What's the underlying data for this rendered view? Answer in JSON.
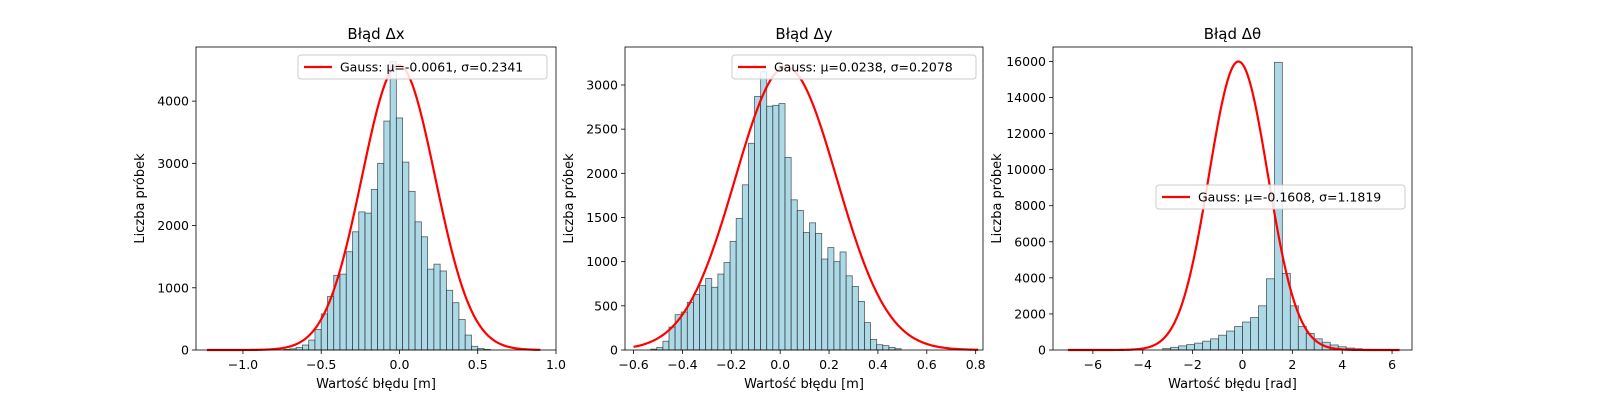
{
  "chart_data": [
    {
      "type": "bar",
      "title": "Błąd Δx",
      "xlabel": "Wartość błędu [m]",
      "ylabel": "Liczba próbek",
      "xlim": [
        -1.3,
        1.0
      ],
      "ylim": [
        0,
        4870
      ],
      "xticks": [
        -1.0,
        -0.5,
        0.0,
        0.5,
        1.0
      ],
      "xtick_labels": [
        "−1.0",
        "−0.5",
        "0.0",
        "0.5",
        "1.0"
      ],
      "yticks": [
        0,
        1000,
        2000,
        3000,
        4000
      ],
      "ytick_labels": [
        "0",
        "1000",
        "2000",
        "3000",
        "4000"
      ],
      "bins": {
        "start": -0.74,
        "width": 0.04
      },
      "values": [
        10,
        20,
        40,
        80,
        160,
        330,
        580,
        860,
        1200,
        1220,
        1580,
        1900,
        2220,
        2200,
        2580,
        3000,
        3680,
        4640,
        3730,
        3020,
        2550,
        2060,
        1820,
        1300,
        1380,
        1270,
        960,
        760,
        490,
        240,
        60,
        25,
        10
      ],
      "gauss": {
        "label": "Gauss: μ=-0.0061, σ=0.2341",
        "mu": -0.0061,
        "sigma": 0.2341,
        "peak": 4580,
        "range": [
          -1.23,
          0.9
        ]
      },
      "legend": "top-right",
      "grid": false
    },
    {
      "type": "bar",
      "title": "Błąd Δy",
      "xlabel": "Wartość błędu [m]",
      "ylabel": "Liczba próbek",
      "xlim": [
        -0.635,
        0.83
      ],
      "ylim": [
        0,
        3430
      ],
      "xticks": [
        -0.6,
        -0.4,
        -0.2,
        0.0,
        0.2,
        0.4,
        0.6,
        0.8
      ],
      "xtick_labels": [
        "−0.6",
        "−0.4",
        "−0.2",
        "0.0",
        "0.2",
        "0.4",
        "0.6",
        "0.8"
      ],
      "yticks": [
        0,
        500,
        1000,
        1500,
        2000,
        2500,
        3000
      ],
      "ytick_labels": [
        "0",
        "500",
        "1000",
        "1500",
        "2000",
        "2500",
        "3000"
      ],
      "bins": {
        "start": -0.53,
        "width": 0.025
      },
      "values": [
        10,
        30,
        100,
        260,
        400,
        430,
        540,
        630,
        730,
        810,
        710,
        860,
        990,
        1230,
        1490,
        1870,
        2340,
        2870,
        3150,
        2760,
        2770,
        2790,
        2180,
        1700,
        1580,
        1330,
        1440,
        1320,
        1030,
        1160,
        1000,
        1110,
        840,
        720,
        550,
        310,
        120,
        60,
        50,
        30,
        15
      ],
      "gauss": {
        "label": "Gauss: μ=0.0238, σ=0.2078",
        "mu": 0.0238,
        "sigma": 0.2078,
        "peak": 3200,
        "range": [
          -0.6,
          0.81
        ]
      },
      "legend": "top-right",
      "grid": false
    },
    {
      "type": "bar",
      "title": "Błąd Δθ",
      "xlabel": "Wartość błędu [rad]",
      "ylabel": "Liczba próbek",
      "xlim": [
        -7.6,
        6.8
      ],
      "ylim": [
        0,
        16800
      ],
      "xticks": [
        -6,
        -4,
        -2,
        0,
        2,
        4,
        6
      ],
      "xtick_labels": [
        "−6",
        "−4",
        "−2",
        "0",
        "2",
        "4",
        "6"
      ],
      "yticks": [
        0,
        2000,
        4000,
        6000,
        8000,
        10000,
        12000,
        14000,
        16000
      ],
      "ytick_labels": [
        "0",
        "2000",
        "4000",
        "6000",
        "8000",
        "10000",
        "12000",
        "14000",
        "16000"
      ],
      "bins": {
        "start": -3.2,
        "width": 0.32
      },
      "values": [
        80,
        150,
        230,
        300,
        380,
        490,
        620,
        820,
        1050,
        1300,
        1550,
        1800,
        2450,
        3950,
        15950,
        4250,
        2450,
        1300,
        920,
        620,
        430,
        280,
        180,
        110,
        70,
        40,
        20
      ],
      "gauss": {
        "label": "Gauss: μ=-0.1608, σ=1.1819",
        "mu": -0.1608,
        "sigma": 1.1819,
        "peak": 16000,
        "range": [
          -7.0,
          6.3
        ]
      },
      "legend": "center-right",
      "grid": false
    }
  ],
  "colors": {
    "bar_fill": "#add8e6",
    "bar_edge": "#000000",
    "gauss_line": "#ff0000"
  }
}
